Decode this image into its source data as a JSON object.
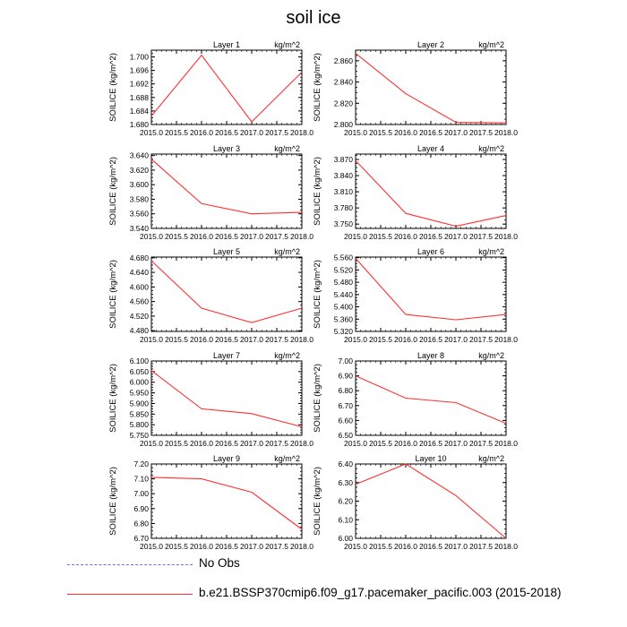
{
  "figure": {
    "title": "soil ice",
    "ylabel": "SOILICE  (kg/m^2)",
    "units": "kg/m^2"
  },
  "legend": {
    "obs_label": "No Obs",
    "model_label": "b.e21.BSSP370cmip6.f09_g17.pacemaker_pacific.003 (2015-2018)",
    "obs_color": "#6b6bff",
    "model_color": "#ff3030"
  },
  "chart_data": [
    {
      "type": "line",
      "title": "Layer 1",
      "units": "kg/m^2",
      "ylabel": "SOILICE  (kg/m^2)",
      "xlim": [
        2015.0,
        2018.0
      ],
      "ylim": [
        1.68,
        1.702
      ],
      "yticks": [
        "1.680",
        "1.684",
        "1.688",
        "1.692",
        "1.696",
        "1.700"
      ],
      "xticks": [
        "2015.0",
        "2015.5",
        "2016.0",
        "2016.5",
        "2017.0",
        "2017.5",
        "2018.0"
      ],
      "series": [
        {
          "x": [
            2015,
            2016,
            2017,
            2018
          ],
          "values": [
            1.6825,
            1.7005,
            1.6808,
            1.6955
          ]
        }
      ]
    },
    {
      "type": "line",
      "title": "Layer 2",
      "units": "kg/m^2",
      "ylabel": "SOILICE  (kg/m^2)",
      "xlim": [
        2015.0,
        2018.0
      ],
      "ylim": [
        2.8,
        2.87
      ],
      "yticks": [
        "2.800",
        "2.820",
        "2.840",
        "2.860"
      ],
      "xticks": [
        "2015.0",
        "2015.5",
        "2016.0",
        "2016.5",
        "2017.0",
        "2017.5",
        "2018.0"
      ],
      "series": [
        {
          "x": [
            2015,
            2016,
            2017,
            2018
          ],
          "values": [
            2.867,
            2.829,
            2.802,
            2.8015
          ]
        }
      ]
    },
    {
      "type": "line",
      "title": "Layer 3",
      "units": "kg/m^2",
      "ylabel": "SOILICE  (kg/m^2)",
      "xlim": [
        2015.0,
        2018.0
      ],
      "ylim": [
        3.54,
        3.642
      ],
      "yticks": [
        "3.540",
        "3.560",
        "3.580",
        "3.600",
        "3.620",
        "3.640"
      ],
      "xticks": [
        "2015.0",
        "2015.5",
        "2016.0",
        "2016.5",
        "2017.0",
        "2017.5",
        "2018.0"
      ],
      "series": [
        {
          "x": [
            2015,
            2016,
            2017,
            2018
          ],
          "values": [
            3.635,
            3.574,
            3.56,
            3.562
          ]
        }
      ]
    },
    {
      "type": "line",
      "title": "Layer 4",
      "units": "kg/m^2",
      "ylabel": "SOILICE  (kg/m^2)",
      "xlim": [
        2015.0,
        2018.0
      ],
      "ylim": [
        3.742,
        3.88
      ],
      "yticks": [
        "3.750",
        "3.780",
        "3.810",
        "3.840",
        "3.870"
      ],
      "xticks": [
        "2015.0",
        "2015.5",
        "2016.0",
        "2016.5",
        "2017.0",
        "2017.5",
        "2018.0"
      ],
      "series": [
        {
          "x": [
            2015,
            2016,
            2017,
            2018
          ],
          "values": [
            3.868,
            3.77,
            3.746,
            3.766
          ]
        }
      ]
    },
    {
      "type": "line",
      "title": "Layer 5",
      "units": "kg/m^2",
      "ylabel": "SOILICE  (kg/m^2)",
      "xlim": [
        2015.0,
        2018.0
      ],
      "ylim": [
        4.478,
        4.682
      ],
      "yticks": [
        "4.480",
        "4.520",
        "4.560",
        "4.600",
        "4.640",
        "4.680"
      ],
      "xticks": [
        "2015.0",
        "2015.5",
        "2016.0",
        "2016.5",
        "2017.0",
        "2017.5",
        "2018.0"
      ],
      "series": [
        {
          "x": [
            2015,
            2016,
            2017,
            2018
          ],
          "values": [
            4.672,
            4.542,
            4.502,
            4.542
          ]
        }
      ]
    },
    {
      "type": "line",
      "title": "Layer 6",
      "units": "kg/m^2",
      "ylabel": "SOILICE  (kg/m^2)",
      "xlim": [
        2015.0,
        2018.0
      ],
      "ylim": [
        5.32,
        5.562
      ],
      "yticks": [
        "5.320",
        "5.360",
        "5.400",
        "5.440",
        "5.480",
        "5.520",
        "5.560"
      ],
      "xticks": [
        "2015.0",
        "2015.5",
        "2016.0",
        "2016.5",
        "2017.0",
        "2017.5",
        "2018.0"
      ],
      "series": [
        {
          "x": [
            2015,
            2016,
            2017,
            2018
          ],
          "values": [
            5.558,
            5.375,
            5.358,
            5.375
          ]
        }
      ]
    },
    {
      "type": "line",
      "title": "Layer 7",
      "units": "kg/m^2",
      "ylabel": "SOILICE  (kg/m^2)",
      "xlim": [
        2015.0,
        2018.0
      ],
      "ylim": [
        5.75,
        6.1
      ],
      "yticks": [
        "5.750",
        "5.800",
        "5.850",
        "5.900",
        "5.950",
        "6.000",
        "6.050",
        "6.100"
      ],
      "xticks": [
        "2015.0",
        "2015.5",
        "2016.0",
        "2016.5",
        "2017.0",
        "2017.5",
        "2018.0"
      ],
      "series": [
        {
          "x": [
            2015,
            2016,
            2017,
            2018
          ],
          "values": [
            6.055,
            5.875,
            5.852,
            5.79
          ]
        }
      ]
    },
    {
      "type": "line",
      "title": "Layer 8",
      "units": "kg/m^2",
      "ylabel": "SOILICE  (kg/m^2)",
      "xlim": [
        2015.0,
        2018.0
      ],
      "ylim": [
        6.5,
        7.0
      ],
      "yticks": [
        "6.50",
        "6.60",
        "6.70",
        "6.80",
        "6.90",
        "7.00"
      ],
      "xticks": [
        "2015.0",
        "2015.5",
        "2016.0",
        "2016.5",
        "2017.0",
        "2017.5",
        "2018.0"
      ],
      "series": [
        {
          "x": [
            2015,
            2016,
            2017,
            2018
          ],
          "values": [
            6.9,
            6.75,
            6.72,
            6.58
          ]
        }
      ]
    },
    {
      "type": "line",
      "title": "Layer 9",
      "units": "kg/m^2",
      "ylabel": "SOILICE  (kg/m^2)",
      "xlim": [
        2015.0,
        2018.0
      ],
      "ylim": [
        6.7,
        7.2
      ],
      "yticks": [
        "6.70",
        "6.80",
        "6.90",
        "7.00",
        "7.10",
        "7.20"
      ],
      "xticks": [
        "2015.0",
        "2015.5",
        "2016.0",
        "2016.5",
        "2017.0",
        "2017.5",
        "2018.0"
      ],
      "series": [
        {
          "x": [
            2015,
            2016,
            2017,
            2018
          ],
          "values": [
            7.11,
            7.1,
            7.01,
            6.76
          ]
        }
      ]
    },
    {
      "type": "line",
      "title": "Layer 10",
      "units": "kg/m^2",
      "ylabel": "SOILICE  (kg/m^2)",
      "xlim": [
        2015.0,
        2018.0
      ],
      "ylim": [
        6.0,
        6.4
      ],
      "yticks": [
        "6.00",
        "6.10",
        "6.20",
        "6.30",
        "6.40"
      ],
      "xticks": [
        "2015.0",
        "2015.5",
        "2016.0",
        "2016.5",
        "2017.0",
        "2017.5",
        "2018.0"
      ],
      "series": [
        {
          "x": [
            2015,
            2016,
            2017,
            2018
          ],
          "values": [
            6.29,
            6.4,
            6.23,
            6.0
          ]
        }
      ]
    }
  ]
}
